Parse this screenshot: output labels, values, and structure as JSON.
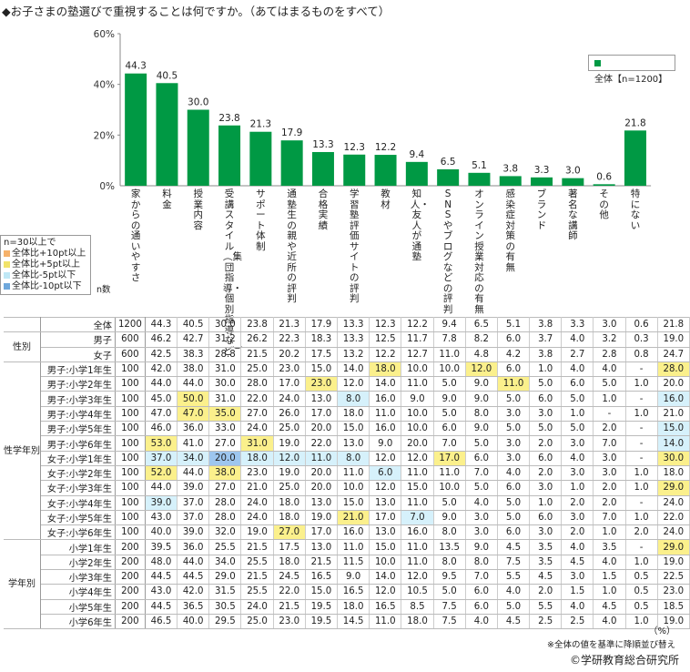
{
  "title": "◆お子さまの塾選びで重視することは何ですか。（あてはまるものをすべて）",
  "legend": "全体【n=1200】",
  "key": {
    "header": "n=30以上で",
    "items": [
      {
        "label": "全体比+10pt以上",
        "color": "#f6b26b"
      },
      {
        "label": "全体比+5pt以上",
        "color": "#f1e36a"
      },
      {
        "label": "全体比-5pt以下",
        "color": "#bfe8f6"
      },
      {
        "label": "全体比-10pt以下",
        "color": "#6fa8dc"
      }
    ]
  },
  "n_label": "n数",
  "chart_data": {
    "type": "bar",
    "title": "◆お子さまの塾選びで重視することは何ですか。（あてはまるものをすべて）",
    "categories": [
      "家からの通いやすさ",
      "料金",
      "授業内容",
      "受講スタイル（集団指導・個別指導など）",
      "サポート体制",
      "通塾生の親や近所の評判",
      "合格実績",
      "学習塾評価サイトの評判",
      "教材",
      "知人・友人が通塾",
      "SNSやブログなどの評判",
      "オンライン授業対応の有無",
      "感染症対策の有無",
      "ブランド",
      "著名な講師",
      "その他",
      "特にない"
    ],
    "values": [
      44.3,
      40.5,
      30.0,
      23.8,
      21.3,
      17.9,
      13.3,
      12.3,
      12.2,
      9.4,
      6.5,
      5.1,
      3.8,
      3.3,
      3.0,
      0.6,
      21.8
    ],
    "value_labels": [
      "44.3",
      "40.5",
      "30.0",
      "23.8",
      "21.3",
      "17.9",
      "13.3",
      "12.3",
      "12.2",
      "9.4",
      "6.5",
      "5.1",
      "3.8",
      "3.3",
      "3.0",
      "0.6",
      "21.8"
    ],
    "ylim": [
      0,
      60
    ],
    "yticks": [
      "0%",
      "20%",
      "40%",
      "60%"
    ],
    "color": "#009944"
  },
  "groups": {
    "sex": "性別",
    "grade_sex": "性学年別",
    "grade": "学年別"
  },
  "unit": "（%）",
  "note": "※全体の値を基準に降順並び替え",
  "credit": "©学研教育総合研究所",
  "rows": [
    {
      "group": "",
      "sep": false,
      "label": "全体",
      "n": "1200",
      "v": [
        "44.3",
        "40.5",
        "30.0",
        "23.8",
        "21.3",
        "17.9",
        "13.3",
        "12.3",
        "12.2",
        "9.4",
        "6.5",
        "5.1",
        "3.8",
        "3.3",
        "3.0",
        "0.6",
        "21.8"
      ],
      "h": []
    },
    {
      "group": "sex",
      "sep": true,
      "label": "男子",
      "n": "600",
      "v": [
        "46.2",
        "42.7",
        "31.2",
        "26.2",
        "22.3",
        "18.3",
        "13.3",
        "12.5",
        "11.7",
        "7.8",
        "8.2",
        "6.0",
        "3.7",
        "4.0",
        "3.2",
        "0.3",
        "19.0"
      ],
      "h": []
    },
    {
      "group": "",
      "sep": false,
      "label": "女子",
      "n": "600",
      "v": [
        "42.5",
        "38.3",
        "28.8",
        "21.5",
        "20.2",
        "17.5",
        "13.2",
        "12.2",
        "12.7",
        "11.0",
        "4.8",
        "4.2",
        "3.8",
        "2.7",
        "2.8",
        "0.8",
        "24.7"
      ],
      "h": []
    },
    {
      "group": "grade_sex",
      "sep": true,
      "label": "男子:小学1年生",
      "n": "100",
      "v": [
        "42.0",
        "38.0",
        "31.0",
        "25.0",
        "23.0",
        "15.0",
        "14.0",
        "18.0",
        "10.0",
        "10.0",
        "12.0",
        "6.0",
        "1.0",
        "4.0",
        "4.0",
        "-",
        "28.0"
      ],
      "h": [
        [
          "7",
          "ye"
        ],
        [
          "10",
          "ye"
        ],
        [
          "16",
          "ye"
        ]
      ]
    },
    {
      "group": "",
      "sep": false,
      "label": "男子:小学2年生",
      "n": "100",
      "v": [
        "44.0",
        "44.0",
        "30.0",
        "28.0",
        "17.0",
        "23.0",
        "12.0",
        "14.0",
        "11.0",
        "5.0",
        "9.0",
        "11.0",
        "5.0",
        "6.0",
        "5.0",
        "1.0",
        "20.0"
      ],
      "h": [
        [
          "5",
          "ye"
        ],
        [
          "11",
          "ye"
        ]
      ]
    },
    {
      "group": "",
      "sep": false,
      "label": "男子:小学3年生",
      "n": "100",
      "v": [
        "45.0",
        "50.0",
        "31.0",
        "22.0",
        "24.0",
        "13.0",
        "8.0",
        "16.0",
        "9.0",
        "9.0",
        "9.0",
        "5.0",
        "6.0",
        "5.0",
        "1.0",
        "-",
        "16.0"
      ],
      "h": [
        [
          "1",
          "ye"
        ],
        [
          "6",
          "lb"
        ],
        [
          "16",
          "lb"
        ]
      ]
    },
    {
      "group": "",
      "sep": false,
      "label": "男子:小学4年生",
      "n": "100",
      "v": [
        "47.0",
        "47.0",
        "35.0",
        "27.0",
        "26.0",
        "17.0",
        "18.0",
        "11.0",
        "10.0",
        "5.0",
        "8.0",
        "3.0",
        "3.0",
        "1.0",
        "-",
        "1.0",
        "21.0"
      ],
      "h": [
        [
          "1",
          "ye"
        ],
        [
          "2",
          "ye"
        ]
      ]
    },
    {
      "group": "",
      "sep": false,
      "label": "男子:小学5年生",
      "n": "100",
      "v": [
        "46.0",
        "36.0",
        "33.0",
        "24.0",
        "25.0",
        "20.0",
        "15.0",
        "16.0",
        "10.0",
        "6.0",
        "9.0",
        "5.0",
        "5.0",
        "5.0",
        "2.0",
        "-",
        "15.0"
      ],
      "h": [
        [
          "16",
          "lb"
        ]
      ]
    },
    {
      "group": "",
      "sep": false,
      "label": "男子:小学6年生",
      "n": "100",
      "v": [
        "53.0",
        "41.0",
        "27.0",
        "31.0",
        "19.0",
        "22.0",
        "13.0",
        "9.0",
        "20.0",
        "7.0",
        "5.0",
        "3.0",
        "2.0",
        "3.0",
        "7.0",
        "-",
        "14.0"
      ],
      "h": [
        [
          "0",
          "ye"
        ],
        [
          "3",
          "ye"
        ],
        [
          "16",
          "lb"
        ]
      ]
    },
    {
      "group": "",
      "sep": false,
      "label": "女子:小学1年生",
      "n": "100",
      "v": [
        "37.0",
        "34.0",
        "20.0",
        "18.0",
        "12.0",
        "11.0",
        "8.0",
        "12.0",
        "12.0",
        "17.0",
        "6.0",
        "3.0",
        "6.0",
        "4.0",
        "3.0",
        "-",
        "30.0"
      ],
      "h": [
        [
          "0",
          "lb"
        ],
        [
          "1",
          "lb"
        ],
        [
          "2",
          "bl"
        ],
        [
          "3",
          "lb"
        ],
        [
          "4",
          "lb"
        ],
        [
          "5",
          "lb"
        ],
        [
          "6",
          "lb"
        ],
        [
          "9",
          "ye"
        ],
        [
          "16",
          "ye"
        ]
      ]
    },
    {
      "group": "",
      "sep": false,
      "label": "女子:小学2年生",
      "n": "100",
      "v": [
        "52.0",
        "44.0",
        "38.0",
        "23.0",
        "19.0",
        "20.0",
        "11.0",
        "6.0",
        "11.0",
        "11.0",
        "7.0",
        "4.0",
        "2.0",
        "3.0",
        "3.0",
        "1.0",
        "18.0"
      ],
      "h": [
        [
          "0",
          "ye"
        ],
        [
          "2",
          "ye"
        ],
        [
          "7",
          "lb"
        ]
      ]
    },
    {
      "group": "",
      "sep": false,
      "label": "女子:小学3年生",
      "n": "100",
      "v": [
        "44.0",
        "39.0",
        "27.0",
        "21.0",
        "25.0",
        "20.0",
        "10.0",
        "12.0",
        "15.0",
        "10.0",
        "5.0",
        "6.0",
        "3.0",
        "1.0",
        "2.0",
        "1.0",
        "29.0"
      ],
      "h": [
        [
          "16",
          "ye"
        ]
      ]
    },
    {
      "group": "",
      "sep": false,
      "label": "女子:小学4年生",
      "n": "100",
      "v": [
        "39.0",
        "37.0",
        "28.0",
        "24.0",
        "18.0",
        "13.0",
        "15.0",
        "13.0",
        "11.0",
        "5.0",
        "4.0",
        "5.0",
        "1.0",
        "2.0",
        "2.0",
        "-",
        "24.0"
      ],
      "h": [
        [
          "0",
          "lb"
        ]
      ]
    },
    {
      "group": "",
      "sep": false,
      "label": "女子:小学5年生",
      "n": "100",
      "v": [
        "43.0",
        "37.0",
        "28.0",
        "24.0",
        "18.0",
        "19.0",
        "21.0",
        "17.0",
        "7.0",
        "9.0",
        "3.0",
        "5.0",
        "6.0",
        "3.0",
        "7.0",
        "1.0",
        "22.0"
      ],
      "h": [
        [
          "6",
          "ye"
        ],
        [
          "8",
          "lb"
        ]
      ]
    },
    {
      "group": "",
      "sep": false,
      "label": "女子:小学6年生",
      "n": "100",
      "v": [
        "40.0",
        "39.0",
        "32.0",
        "19.0",
        "27.0",
        "17.0",
        "16.0",
        "13.0",
        "16.0",
        "8.0",
        "3.0",
        "6.0",
        "3.0",
        "2.0",
        "1.0",
        "2.0",
        "24.0"
      ],
      "h": [
        [
          "4",
          "ye"
        ]
      ]
    },
    {
      "group": "grade",
      "sep": true,
      "label": "小学1年生",
      "n": "200",
      "v": [
        "39.5",
        "36.0",
        "25.5",
        "21.5",
        "17.5",
        "13.0",
        "11.0",
        "15.0",
        "11.0",
        "13.5",
        "9.0",
        "4.5",
        "3.5",
        "4.0",
        "3.5",
        "-",
        "29.0"
      ],
      "h": [
        [
          "16",
          "ye"
        ]
      ]
    },
    {
      "group": "",
      "sep": false,
      "label": "小学2年生",
      "n": "200",
      "v": [
        "48.0",
        "44.0",
        "34.0",
        "25.5",
        "18.0",
        "21.5",
        "11.5",
        "10.0",
        "11.0",
        "8.0",
        "8.0",
        "7.5",
        "3.5",
        "4.5",
        "4.0",
        "1.0",
        "19.0"
      ],
      "h": []
    },
    {
      "group": "",
      "sep": false,
      "label": "小学3年生",
      "n": "200",
      "v": [
        "44.5",
        "44.5",
        "29.0",
        "21.5",
        "24.5",
        "16.5",
        "9.0",
        "14.0",
        "12.0",
        "9.5",
        "7.0",
        "5.5",
        "4.5",
        "3.0",
        "1.5",
        "0.5",
        "22.5"
      ],
      "h": []
    },
    {
      "group": "",
      "sep": false,
      "label": "小学4年生",
      "n": "200",
      "v": [
        "43.0",
        "42.0",
        "31.5",
        "25.5",
        "22.0",
        "15.0",
        "16.5",
        "12.0",
        "10.5",
        "5.0",
        "6.0",
        "4.0",
        "2.0",
        "1.5",
        "1.0",
        "0.5",
        "23.0"
      ],
      "h": []
    },
    {
      "group": "",
      "sep": false,
      "label": "小学5年生",
      "n": "200",
      "v": [
        "44.5",
        "36.5",
        "30.5",
        "24.0",
        "21.5",
        "19.5",
        "18.0",
        "16.5",
        "8.5",
        "7.5",
        "6.0",
        "5.0",
        "5.5",
        "4.0",
        "4.5",
        "0.5",
        "18.5"
      ],
      "h": []
    },
    {
      "group": "",
      "sep": false,
      "label": "小学6年生",
      "n": "200",
      "v": [
        "46.5",
        "40.0",
        "29.5",
        "25.0",
        "23.0",
        "19.5",
        "14.5",
        "11.0",
        "18.0",
        "7.5",
        "4.0",
        "4.5",
        "2.5",
        "2.5",
        "4.0",
        "1.0",
        "19.0"
      ],
      "h": []
    }
  ]
}
